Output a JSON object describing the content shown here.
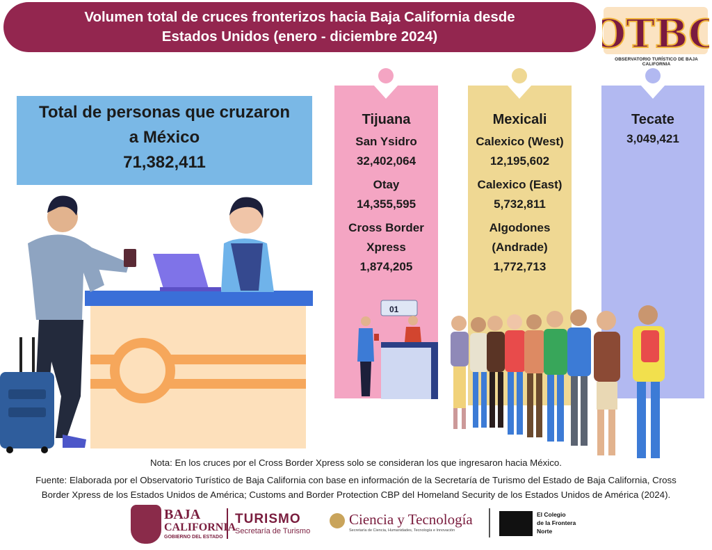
{
  "header": {
    "title_line1": "Volumen total de cruces fronterizos hacia Baja California desde",
    "title_line2": "Estados Unidos (enero - diciembre 2024)"
  },
  "logo": {
    "letters": "OTBC",
    "caption": "OBSERVATORIO TURÍSTICO DE BAJA CALIFORNIA"
  },
  "total": {
    "label_line1": "Total de personas que cruzaron",
    "label_line2": "a México",
    "value": "71,382,411"
  },
  "columns": [
    {
      "city": "Tijuana",
      "color": "#f4a5c3",
      "crossings": [
        {
          "name": "San Ysidro",
          "value": "32,402,064"
        },
        {
          "name": "Otay",
          "value": "14,355,595"
        },
        {
          "name_line1": "Cross Border",
          "name_line2": "Xpress",
          "value": "1,874,205"
        }
      ]
    },
    {
      "city": "Mexicali",
      "color": "#efd893",
      "crossings": [
        {
          "name": "Calexico (West)",
          "value": "12,195,602"
        },
        {
          "name": "Calexico (East)",
          "value": "5,732,811"
        },
        {
          "name_line1": "Algodones",
          "name_line2": "(Andrade)",
          "value": "1,772,713"
        }
      ]
    },
    {
      "city": "Tecate",
      "color": "#b2b9f1",
      "value": "3,049,421"
    }
  ],
  "counter_sign": "01",
  "notes": {
    "nota": "Nota: En los cruces por el Cross Border Xpress solo se consideran los que ingresaron hacia México.",
    "fuente_line1": "Fuente: Elaborada por el Observatorio Turístico de Baja California con base en información de la Secretaría de Turismo del Estado de Baja California, Cross",
    "fuente_line2": "Border Xpress de los Estados Unidos de América; Customs and Border Protection CBP del Homeland Security de los Estados Unidos de América (2024)."
  },
  "footer": {
    "baja_line1": "BAJA",
    "baja_line2": "CALIFORNIA",
    "baja_line3": "GOBIERNO DEL ESTADO",
    "turismo": "TURISMO",
    "turismo_sub": "Secretaría de Turismo",
    "ciencia": "Ciencia y Tecnología",
    "ciencia_sub": "Secretaría de Ciencia, Humanidades, Tecnología e Innovación",
    "colef_line1": "El Colegio",
    "colef_line2": "de la Frontera",
    "colef_line3": "Norte"
  },
  "colors": {
    "banner": "#93264f",
    "total_card": "#7ab8e6",
    "tijuana": "#f4a5c3",
    "mexicali": "#efd893",
    "tecate": "#b2b9f1"
  }
}
